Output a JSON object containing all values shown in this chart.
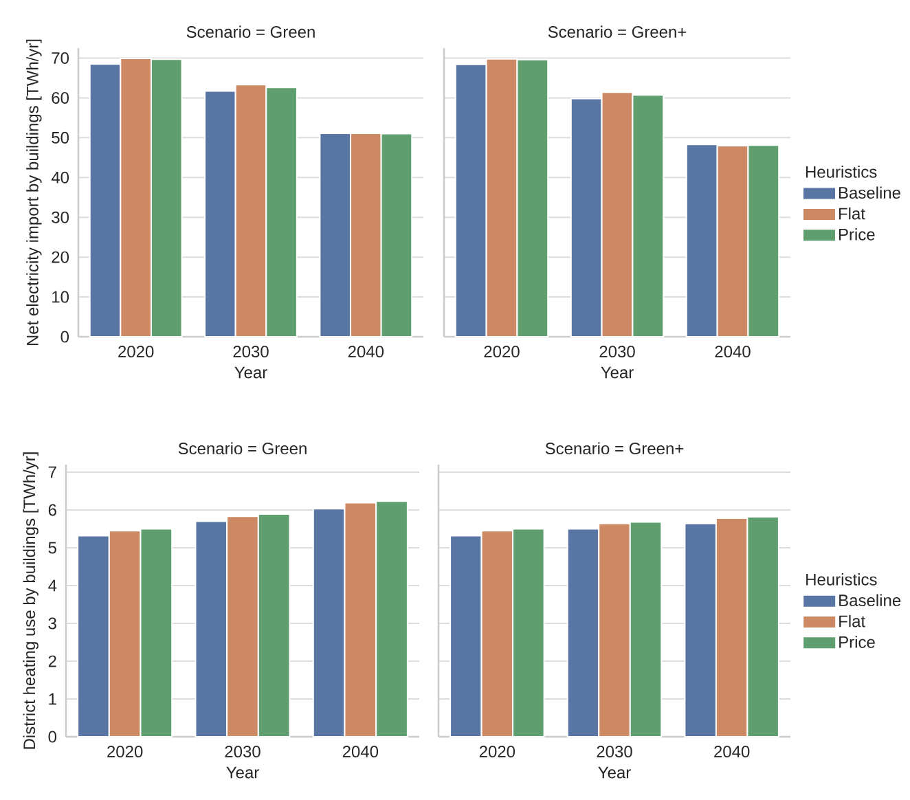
{
  "chart_data": [
    {
      "type": "bar",
      "title": "Scenario = Green",
      "xlabel": "Year",
      "ylabel": "Net electricity import by buildings [TWh/yr]",
      "categories": [
        "2020",
        "2030",
        "2040"
      ],
      "series": [
        {
          "color": "#5975a4",
          "values": [
            68.5,
            61.7,
            51.1
          ]
        },
        {
          "color": "#cc8963",
          "values": [
            69.9,
            63.3,
            51.1
          ]
        },
        {
          "color": "#5f9e6e",
          "values": [
            69.7,
            62.6,
            51.0
          ]
        }
      ],
      "ylim": [
        0,
        72.5
      ],
      "yticks": [
        0,
        10,
        20,
        30,
        40,
        50,
        60,
        70
      ],
      "grid": "y"
    },
    {
      "type": "bar",
      "title": "Scenario = Green+",
      "xlabel": "Year",
      "categories": [
        "2020",
        "2030",
        "2040"
      ],
      "series": [
        {
          "name": "Baseline",
          "color": "#5975a4",
          "values": [
            68.4,
            59.8,
            48.3
          ]
        },
        {
          "name": "Flat",
          "color": "#cc8963",
          "values": [
            69.8,
            61.4,
            48.0
          ]
        },
        {
          "name": "Price",
          "color": "#5f9e6e",
          "values": [
            69.6,
            60.7,
            48.1
          ]
        }
      ],
      "ylim": [
        0,
        72.5
      ],
      "yticks": [
        0,
        10,
        20,
        30,
        40,
        50,
        60,
        70
      ],
      "grid": "y",
      "tick_labels": "x",
      "legend": "right",
      "legend_title": "Heuristics"
    },
    {
      "type": "bar",
      "title": "Scenario = Green",
      "xlabel": "Year",
      "ylabel": "District heating use by buildings [TWh/yr]",
      "categories": [
        "2020",
        "2030",
        "2040"
      ],
      "series": [
        {
          "color": "#5975a4",
          "values": [
            5.32,
            5.7,
            6.03
          ]
        },
        {
          "color": "#cc8963",
          "values": [
            5.45,
            5.83,
            6.19
          ]
        },
        {
          "color": "#5f9e6e",
          "values": [
            5.5,
            5.89,
            6.23
          ]
        }
      ],
      "ylim": [
        0,
        7.2
      ],
      "yticks": [
        0,
        1,
        2,
        3,
        4,
        5,
        6,
        7
      ],
      "grid": "y"
    },
    {
      "type": "bar",
      "title": "Scenario = Green+",
      "xlabel": "Year",
      "categories": [
        "2020",
        "2030",
        "2040"
      ],
      "series": [
        {
          "name": "Baseline",
          "color": "#5975a4",
          "values": [
            5.32,
            5.5,
            5.64
          ]
        },
        {
          "name": "Flat",
          "color": "#cc8963",
          "values": [
            5.45,
            5.64,
            5.78
          ]
        },
        {
          "name": "Price",
          "color": "#5f9e6e",
          "values": [
            5.5,
            5.68,
            5.82
          ]
        }
      ],
      "ylim": [
        0,
        7.2
      ],
      "yticks": [
        0,
        1,
        2,
        3,
        4,
        5,
        6,
        7
      ],
      "grid": "y",
      "tick_labels": "x",
      "legend": "right",
      "legend_title": "Heuristics"
    }
  ]
}
